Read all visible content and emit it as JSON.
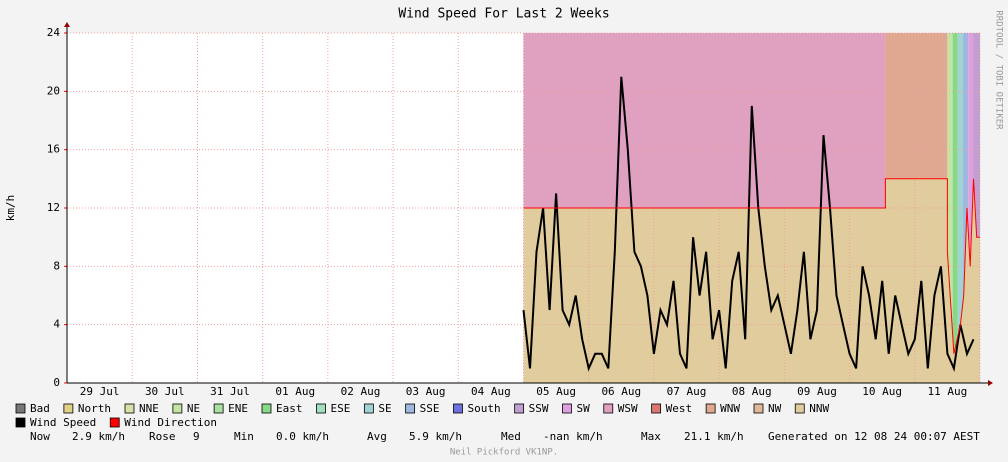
{
  "chart_data": {
    "type": "line",
    "title": "Wind Speed For Last 2 Weeks",
    "y_label": "km/h",
    "side_label": "RRDTOOL / TOBI OETIKER",
    "footer": "Neil Pickford VK1NP.",
    "xlim": [
      0,
      14
    ],
    "xticks": [
      {
        "value": 0.5,
        "label": "29 Jul"
      },
      {
        "value": 1.5,
        "label": "30 Jul"
      },
      {
        "value": 2.5,
        "label": "31 Jul"
      },
      {
        "value": 3.5,
        "label": "01 Aug"
      },
      {
        "value": 4.5,
        "label": "02 Aug"
      },
      {
        "value": 5.5,
        "label": "03 Aug"
      },
      {
        "value": 6.5,
        "label": "04 Aug"
      },
      {
        "value": 7.5,
        "label": "05 Aug"
      },
      {
        "value": 8.5,
        "label": "06 Aug"
      },
      {
        "value": 9.5,
        "label": "07 Aug"
      },
      {
        "value": 10.5,
        "label": "08 Aug"
      },
      {
        "value": 11.5,
        "label": "09 Aug"
      },
      {
        "value": 12.5,
        "label": "10 Aug"
      },
      {
        "value": 13.5,
        "label": "11 Aug"
      }
    ],
    "ylim": [
      0,
      24
    ],
    "yticks": [
      0,
      4,
      8,
      12,
      16,
      20,
      24
    ],
    "grid": true,
    "direction_legend": [
      {
        "name": "Bad",
        "color": "#777777"
      },
      {
        "name": "North",
        "color": "#e0d08c"
      },
      {
        "name": "NNE",
        "color": "#d8e0a8"
      },
      {
        "name": "NE",
        "color": "#c4e4a4"
      },
      {
        "name": "ENE",
        "color": "#a8e0a0"
      },
      {
        "name": "East",
        "color": "#88d888"
      },
      {
        "name": "ESE",
        "color": "#a0e0c0"
      },
      {
        "name": "SE",
        "color": "#a0d4d4"
      },
      {
        "name": "SSE",
        "color": "#a0b8e0"
      },
      {
        "name": "South",
        "color": "#7070e0"
      },
      {
        "name": "SSW",
        "color": "#c0a0d0"
      },
      {
        "name": "SW",
        "color": "#e0a0e0"
      },
      {
        "name": "WSW",
        "color": "#e0a0c0"
      },
      {
        "name": "West",
        "color": "#d87870"
      },
      {
        "name": "WNW",
        "color": "#e0a890"
      },
      {
        "name": "NW",
        "color": "#e0b898"
      },
      {
        "name": "NNW",
        "color": "#e0cc9c"
      }
    ],
    "direction_bands": [
      {
        "name": "WSW",
        "start": 7,
        "end": 12.55
      },
      {
        "name": "WNW",
        "start": 12.55,
        "end": 13.5
      },
      {
        "name": "NE",
        "start": 13.5,
        "end": 13.58
      },
      {
        "name": "East",
        "start": 13.58,
        "end": 13.66
      },
      {
        "name": "SE",
        "start": 13.66,
        "end": 13.74
      },
      {
        "name": "SSE",
        "start": 13.74,
        "end": 13.82
      },
      {
        "name": "SW",
        "start": 13.82,
        "end": 13.9
      },
      {
        "name": "SSW",
        "start": 13.9,
        "end": 14
      }
    ],
    "series": [
      {
        "name": "Wind Speed",
        "color": "#000000",
        "x": [
          7.0,
          7.1,
          7.2,
          7.3,
          7.4,
          7.5,
          7.6,
          7.7,
          7.8,
          7.9,
          8.0,
          8.1,
          8.2,
          8.3,
          8.4,
          8.5,
          8.6,
          8.7,
          8.8,
          8.9,
          9.0,
          9.1,
          9.2,
          9.3,
          9.4,
          9.5,
          9.6,
          9.7,
          9.8,
          9.9,
          10.0,
          10.1,
          10.2,
          10.3,
          10.4,
          10.5,
          10.6,
          10.7,
          10.8,
          10.9,
          11.0,
          11.1,
          11.2,
          11.3,
          11.4,
          11.5,
          11.6,
          11.7,
          11.8,
          11.9,
          12.0,
          12.1,
          12.2,
          12.3,
          12.4,
          12.5,
          12.6,
          12.7,
          12.8,
          12.9,
          13.0,
          13.1,
          13.2,
          13.3,
          13.4,
          13.5,
          13.6,
          13.7,
          13.8,
          13.9
        ],
        "values": [
          5,
          1,
          9,
          12,
          5,
          13,
          5,
          4,
          6,
          3,
          1,
          2,
          2,
          1,
          9,
          21,
          16,
          9,
          8,
          6,
          2,
          5,
          4,
          7,
          2,
          1,
          10,
          6,
          9,
          3,
          5,
          1,
          7,
          9,
          3,
          19,
          12,
          8,
          5,
          6,
          4,
          2,
          5,
          9,
          3,
          5,
          17,
          12,
          6,
          4,
          2,
          1,
          8,
          6,
          3,
          7,
          2,
          6,
          4,
          2,
          3,
          7,
          1,
          6,
          8,
          2,
          1,
          4,
          2,
          3
        ]
      },
      {
        "name": "Wind Direction",
        "color": "#ff0000",
        "fill": "#e0cc9c",
        "x": [
          7,
          12.55,
          12.55,
          13.5,
          13.5,
          13.6,
          13.7,
          13.75,
          13.8,
          13.85,
          13.9,
          13.95,
          14
        ],
        "values": [
          12,
          12,
          14,
          14,
          9,
          2,
          4,
          6,
          12,
          8,
          14,
          10,
          10
        ]
      }
    ],
    "stats": [
      {
        "label": "Now",
        "value": "2.9 km/h"
      },
      {
        "label": "Rose",
        "value": "9"
      },
      {
        "label": "Min",
        "value": "0.0 km/h"
      },
      {
        "label": "Avg",
        "value": "5.9 km/h"
      },
      {
        "label": "Med",
        "value": "-nan km/h"
      },
      {
        "label": "Max",
        "value": "21.1 km/h"
      }
    ],
    "generated": "Generated on 12 08 24 00:07 AEST"
  }
}
